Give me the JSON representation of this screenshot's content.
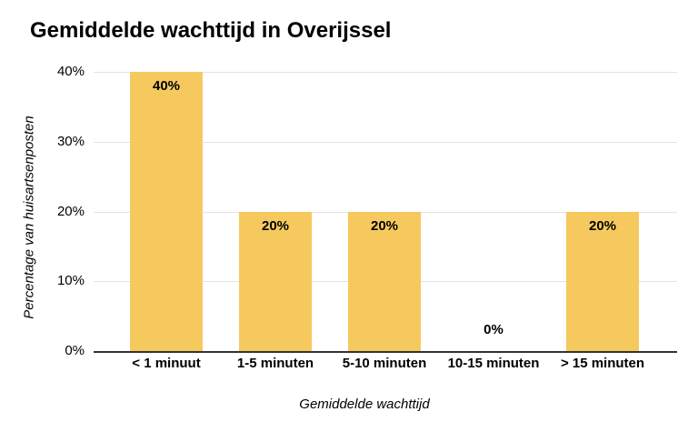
{
  "chart_data": {
    "type": "bar",
    "title": "Gemiddelde wachttijd in Overijssel",
    "xlabel": "Gemiddelde wachttijd",
    "ylabel": "Percentage van huisartsenposten",
    "categories": [
      "< 1 minuut",
      "1-5 minuten",
      "5-10 minuten",
      "10-15 minuten",
      "> 15 minuten"
    ],
    "values": [
      40,
      20,
      20,
      0,
      20
    ],
    "annotations": [
      "40%",
      "20%",
      "20%",
      "0%",
      "20%"
    ],
    "ylim": [
      0,
      40
    ],
    "yticks": [
      0,
      10,
      20,
      30,
      40
    ],
    "ytick_labels": [
      "0%",
      "10%",
      "20%",
      "30%",
      "40%"
    ],
    "grid": true,
    "legend": "none",
    "colors": {
      "bar": "#F6C95F",
      "annotation": "#000000",
      "gridline": "#E3E3E3",
      "axis_line": "#333333",
      "text": "#000000"
    }
  }
}
